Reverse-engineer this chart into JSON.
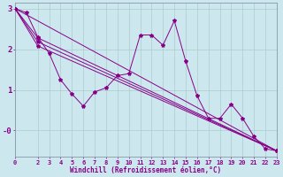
{
  "xlabel": "Windchill (Refroidissement éolien,°C)",
  "background_color": "#cce8ee",
  "line_color": "#880088",
  "grid_color": "#aacccc",
  "xlim": [
    0,
    23
  ],
  "ylim": [
    -0.65,
    3.15
  ],
  "x_ticks": [
    0,
    2,
    3,
    4,
    5,
    6,
    7,
    8,
    9,
    10,
    11,
    12,
    13,
    14,
    15,
    16,
    17,
    18,
    19,
    20,
    21,
    22,
    23
  ],
  "yticks": [
    0.0,
    1.0,
    2.0,
    3.0
  ],
  "ytick_labels": [
    "-0",
    "1",
    "2",
    "3"
  ],
  "main_x": [
    0,
    1,
    2,
    3,
    4,
    5,
    6,
    7,
    8,
    9,
    10,
    11,
    12,
    13,
    14,
    15,
    16,
    17,
    18,
    19,
    20,
    21,
    22,
    23
  ],
  "main_y": [
    3.0,
    2.9,
    2.3,
    1.9,
    1.25,
    0.9,
    0.6,
    0.95,
    1.05,
    1.35,
    1.4,
    2.35,
    2.35,
    2.1,
    2.7,
    1.7,
    0.85,
    0.3,
    0.3,
    0.65,
    0.3,
    -0.15,
    -0.45,
    -0.5
  ],
  "straight_lines": [
    {
      "x": [
        0,
        1,
        23
      ],
      "y": [
        3.0,
        2.88,
        -0.5
      ]
    },
    {
      "x": [
        0,
        2,
        23
      ],
      "y": [
        3.0,
        2.28,
        -0.5
      ]
    },
    {
      "x": [
        0,
        2,
        23
      ],
      "y": [
        3.0,
        2.18,
        -0.5
      ]
    },
    {
      "x": [
        0,
        2,
        23
      ],
      "y": [
        3.0,
        2.08,
        -0.5
      ]
    }
  ]
}
